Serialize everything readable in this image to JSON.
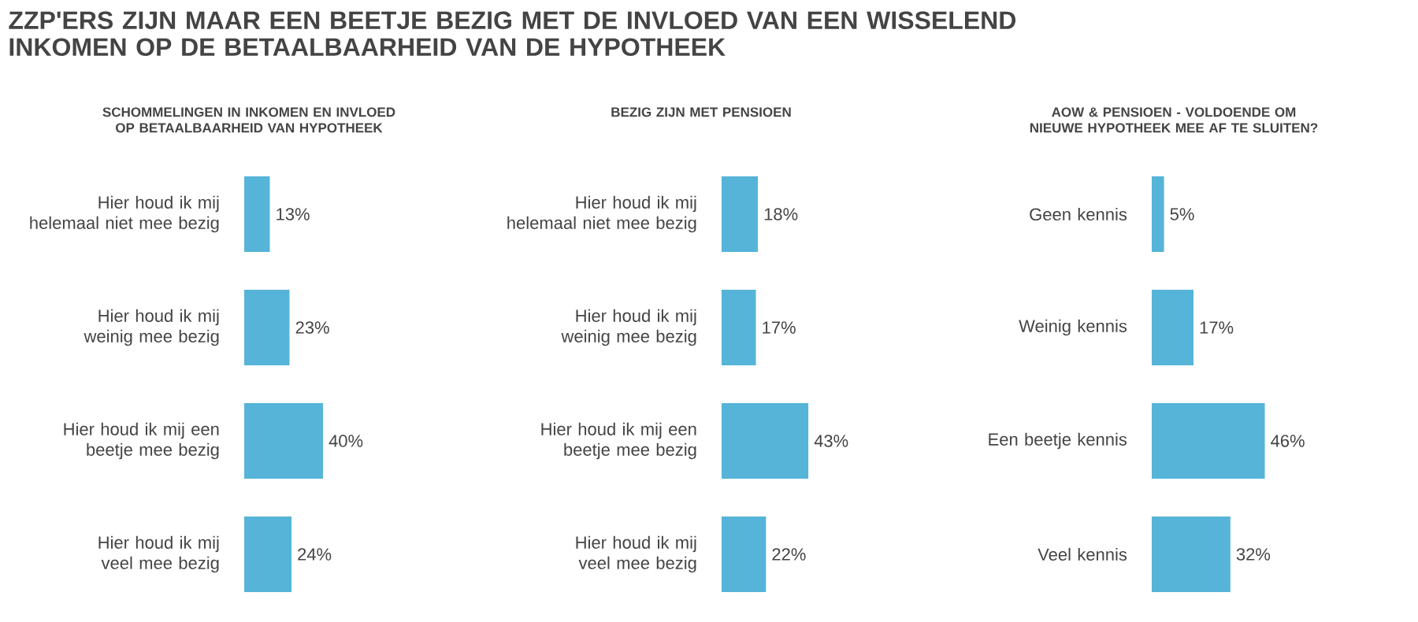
{
  "chart_data": [
    {
      "type": "bar",
      "orientation": "horizontal",
      "title": "ZZP'ERS ZIJN MAAR EEN BEETJE BEZIG MET DE INVLOED VAN EEN WISSELEND INKOMEN OP DE BETAALBAARHEID VAN DE HYPOTHEEK",
      "subtitle": "SCHOMMELINGEN IN INKOMEN EN INVLOED OP BETAALBAARHEID VAN HYPOTHEEK",
      "categories": [
        "Hier houd ik mij helemaal niet mee bezig",
        "Hier houd ik mij weinig mee bezig",
        "Hier houd ik mij een beetje mee bezig",
        "Hier houd ik mij veel mee bezig"
      ],
      "values": [
        13,
        23,
        40,
        24
      ],
      "value_labels": [
        "13%",
        "23%",
        "40%",
        "24%"
      ],
      "color": "#56b4d8",
      "tick_labels": "y"
    },
    {
      "type": "bar",
      "orientation": "horizontal",
      "subtitle": "BEZIG ZIJN MET PENSIOEN",
      "categories": [
        "Hier houd ik mij helemaal niet mee bezig",
        "Hier houd ik mij weinig mee bezig",
        "Hier houd ik mij een beetje mee bezig",
        "Hier houd ik mij veel mee bezig"
      ],
      "values": [
        18,
        17,
        43,
        22
      ],
      "value_labels": [
        "18%",
        "17%",
        "43%",
        "22%"
      ],
      "color": "#56b4d8",
      "tick_labels": "y"
    },
    {
      "type": "bar",
      "orientation": "horizontal",
      "subtitle": "AOW & PENSIOEN - VOLDOENDE OM NIEUWE HYPOTHEEK MEE AF TE SLUITEN?",
      "categories": [
        "Geen kennis",
        "Weinig kennis",
        "Een beetje kennis",
        "Veel kennis"
      ],
      "values": [
        5,
        17,
        46,
        32
      ],
      "value_labels": [
        "5%",
        "17%",
        "46%",
        "32%"
      ],
      "color": "#56b4d8",
      "tick_labels": "y"
    }
  ]
}
